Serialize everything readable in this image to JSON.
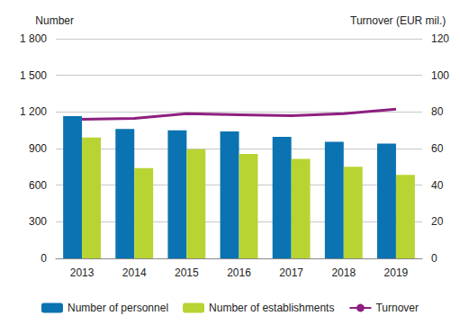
{
  "chart_data": {
    "type": "bar",
    "y_label": "Number",
    "y2_label": "Turnover (EUR mil.)",
    "categories": [
      "2013",
      "2014",
      "2015",
      "2016",
      "2017",
      "2018",
      "2019"
    ],
    "series": [
      {
        "name": "Number of personnel",
        "type": "bar",
        "color": "#0b73b1",
        "values": [
          1165,
          1060,
          1050,
          1040,
          995,
          955,
          940
        ]
      },
      {
        "name": "Number of establishments",
        "type": "bar",
        "color": "#b7d433",
        "values": [
          990,
          740,
          895,
          855,
          815,
          750,
          685
        ]
      },
      {
        "name": "Turnover",
        "type": "line",
        "color": "#8e1f80",
        "axis": "y2",
        "values": [
          76,
          76.5,
          79,
          78.5,
          78,
          79,
          81.5
        ]
      }
    ],
    "ylim": [
      0,
      1800
    ],
    "yticks": [
      0,
      300,
      600,
      900,
      {
        "value": 1200,
        "label": "1 200"
      },
      {
        "value": 1500,
        "label": "1 500"
      },
      {
        "value": 1800,
        "label": "1 800"
      }
    ],
    "y2lim": [
      0,
      120
    ],
    "y2ticks": [
      0,
      20,
      40,
      60,
      80,
      100,
      120
    ],
    "grid": true,
    "legend": "bottom"
  }
}
